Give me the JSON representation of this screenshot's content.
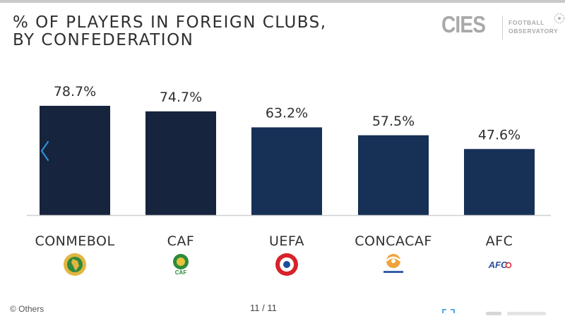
{
  "title_lines": [
    "% OF PLAYERS IN FOREIGN CLUBS,",
    "BY CONFEDERATION"
  ],
  "logo": {
    "mark": "CIES",
    "line1": "FOOTBALL",
    "line2": "OBSERVATORY"
  },
  "chart_data": {
    "type": "bar",
    "title": "% OF PLAYERS IN FOREIGN CLUBS, BY CONFEDERATION",
    "categories": [
      "CONMEBOL",
      "CAF",
      "UEFA",
      "CONCACAF",
      "AFC"
    ],
    "values": [
      78.7,
      74.7,
      63.2,
      57.5,
      47.6
    ],
    "data_labels": [
      "78.7%",
      "74.7%",
      "63.2%",
      "57.5%",
      "47.6%"
    ],
    "unit": "%",
    "ylim": [
      0,
      100
    ],
    "grid": false,
    "legend": "none",
    "bar_colors": [
      "#17243d",
      "#17243d",
      "#173056",
      "#173056",
      "#173056"
    ],
    "baseline_color": "#d0d0d0",
    "category_icons": [
      "conmebol-logo-icon",
      "caf-logo-icon",
      "uefa-logo-icon",
      "concacaf-logo-icon",
      "afc-logo-icon"
    ]
  },
  "footer": {
    "source": "© Others",
    "page": "11 / 11"
  },
  "colors": {
    "accent_arrow": "#2f8fd6",
    "text": "#2f2f2f",
    "logo_grey": "#a9a9a9"
  }
}
